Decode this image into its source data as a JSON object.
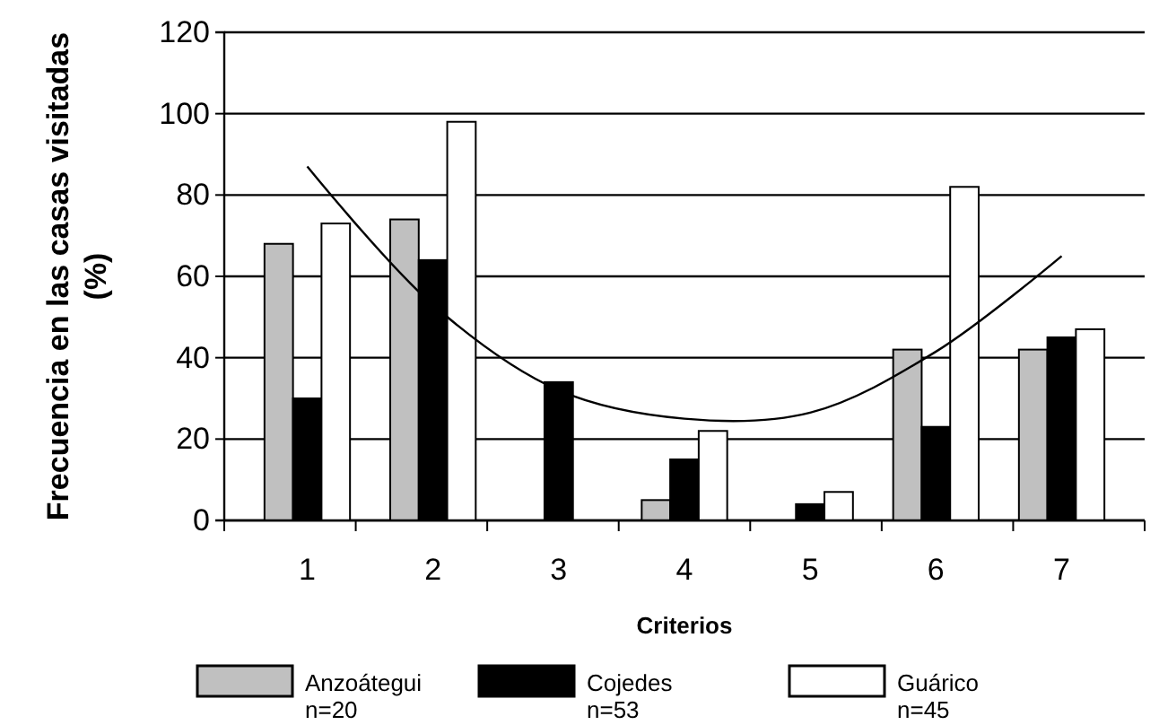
{
  "chart_data": {
    "type": "bar",
    "xlabel": "Criterios",
    "ylabel": "Frecuencia en las casas visitadas (%)",
    "categories": [
      "1",
      "2",
      "3",
      "4",
      "5",
      "6",
      "7"
    ],
    "series": [
      {
        "name": "Anzoátegui\nn=20",
        "color": "#c0c0c0",
        "values": [
          68,
          74,
          0,
          5,
          0,
          42,
          42
        ]
      },
      {
        "name": "Cojedes\nn=53",
        "color": "#000000",
        "values": [
          30,
          64,
          34,
          15,
          4,
          23,
          45
        ]
      },
      {
        "name": "Guárico\nn=45",
        "color": "#ffffff",
        "values": [
          73,
          98,
          0,
          22,
          7,
          82,
          47
        ]
      },
      {
        "type": "line",
        "color": "#000000",
        "values": [
          87,
          53,
          32,
          25,
          26.5,
          41.5,
          65
        ]
      }
    ],
    "ylim": [
      0,
      120
    ],
    "yticks": [
      0,
      20,
      40,
      60,
      80,
      100,
      120
    ],
    "grid": "y",
    "legend": "bottom",
    "marker": "none",
    "line_style": "solid"
  }
}
